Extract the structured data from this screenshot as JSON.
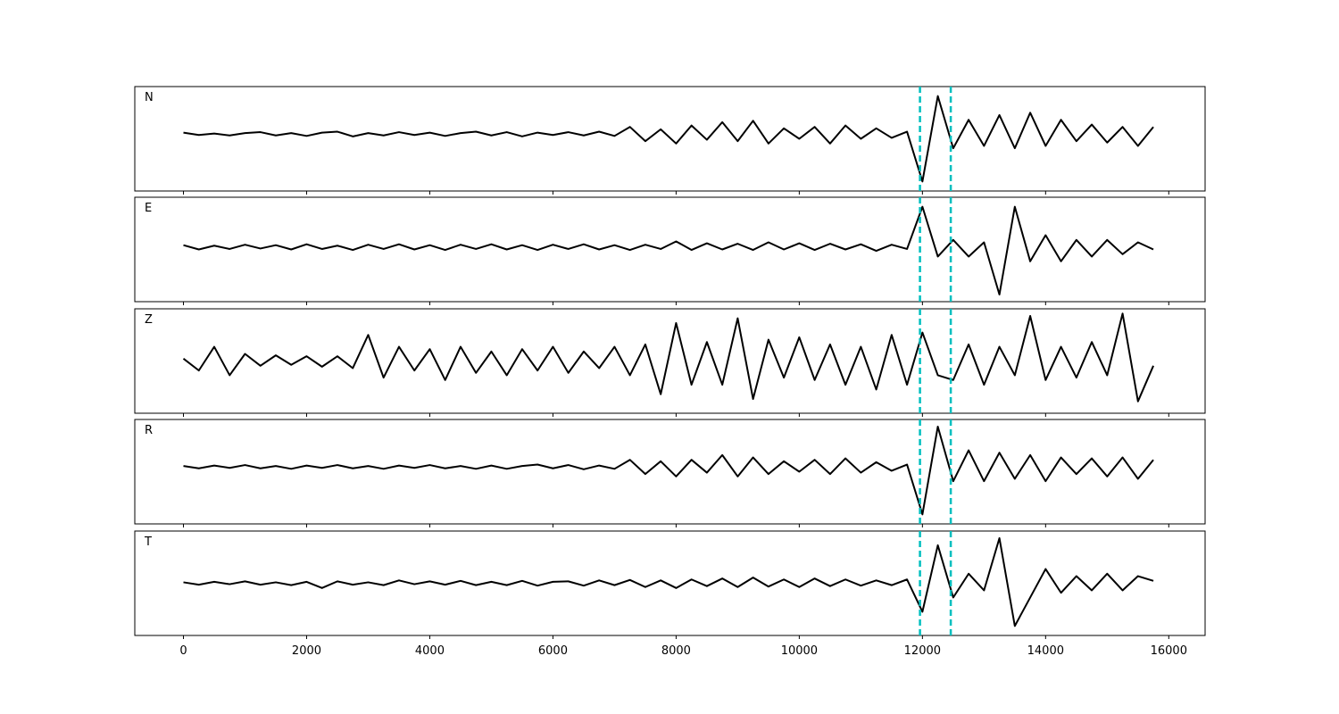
{
  "chart_data": {
    "type": "line",
    "line_color": "#000000",
    "x": [
      0,
      250,
      500,
      750,
      1000,
      1250,
      1500,
      1750,
      2000,
      2250,
      2500,
      2750,
      3000,
      3250,
      3500,
      3750,
      4000,
      4250,
      4500,
      4750,
      5000,
      5250,
      5500,
      5750,
      6000,
      6250,
      6500,
      6750,
      7000,
      7250,
      7500,
      7750,
      8000,
      8250,
      8500,
      8750,
      9000,
      9250,
      9500,
      9750,
      10000,
      10250,
      10500,
      10750,
      11000,
      11250,
      11500,
      11750,
      12000,
      12250,
      12500,
      12750,
      13000,
      13250,
      13500,
      13750,
      14000,
      14250,
      14500,
      14750,
      15000,
      15250,
      15500,
      15750
    ],
    "xlim": [
      -790,
      16590
    ],
    "xticks": [
      0,
      2000,
      4000,
      6000,
      8000,
      10000,
      12000,
      14000,
      16000
    ],
    "markers": {
      "values": [
        11960,
        12460
      ],
      "color": "#00bfbf"
    },
    "panels": [
      {
        "label": "N",
        "ylim": [
          -1.2,
          1.0
        ],
        "values": [
          0.03,
          -0.02,
          0.01,
          -0.03,
          0.02,
          0.04,
          -0.03,
          0.02,
          -0.04,
          0.03,
          0.05,
          -0.05,
          0.02,
          -0.03,
          0.04,
          -0.02,
          0.03,
          -0.04,
          0.02,
          0.05,
          -0.03,
          0.04,
          -0.05,
          0.03,
          -0.02,
          0.04,
          -0.03,
          0.05,
          -0.04,
          0.15,
          -0.15,
          0.1,
          -0.2,
          0.18,
          -0.12,
          0.25,
          -0.15,
          0.28,
          -0.2,
          0.12,
          -0.1,
          0.15,
          -0.2,
          0.18,
          -0.1,
          0.12,
          -0.08,
          0.05,
          -1.0,
          0.8,
          -0.3,
          0.3,
          -0.25,
          0.4,
          -0.3,
          0.45,
          -0.25,
          0.3,
          -0.15,
          0.2,
          -0.18,
          0.15,
          -0.25,
          0.15
        ]
      },
      {
        "label": "E",
        "ylim": [
          -1.15,
          1.05
        ],
        "values": [
          0.04,
          -0.05,
          0.03,
          -0.04,
          0.05,
          -0.03,
          0.04,
          -0.05,
          0.06,
          -0.04,
          0.03,
          -0.06,
          0.05,
          -0.04,
          0.06,
          -0.05,
          0.04,
          -0.06,
          0.05,
          -0.04,
          0.06,
          -0.05,
          0.04,
          -0.06,
          0.05,
          -0.04,
          0.06,
          -0.05,
          0.04,
          -0.06,
          0.05,
          -0.04,
          0.12,
          -0.06,
          0.08,
          -0.05,
          0.07,
          -0.06,
          0.1,
          -0.05,
          0.08,
          -0.06,
          0.07,
          -0.05,
          0.06,
          -0.08,
          0.05,
          -0.04,
          0.85,
          -0.2,
          0.15,
          -0.2,
          0.1,
          -1.0,
          0.85,
          -0.3,
          0.25,
          -0.3,
          0.15,
          -0.2,
          0.15,
          -0.15,
          0.1,
          -0.05
        ]
      },
      {
        "label": "Z",
        "ylim": [
          -1.1,
          1.1
        ],
        "values": [
          0.05,
          -0.2,
          0.3,
          -0.3,
          0.15,
          -0.1,
          0.12,
          -0.08,
          0.1,
          -0.12,
          0.1,
          -0.15,
          0.55,
          -0.35,
          0.3,
          -0.2,
          0.25,
          -0.4,
          0.3,
          -0.25,
          0.2,
          -0.3,
          0.25,
          -0.2,
          0.3,
          -0.25,
          0.2,
          -0.15,
          0.3,
          -0.3,
          0.35,
          -0.7,
          0.8,
          -0.5,
          0.4,
          -0.5,
          0.9,
          -0.8,
          0.45,
          -0.35,
          0.5,
          -0.4,
          0.35,
          -0.5,
          0.3,
          -0.6,
          0.55,
          -0.5,
          0.6,
          -0.3,
          -0.4,
          0.35,
          -0.5,
          0.3,
          -0.3,
          0.95,
          -0.4,
          0.3,
          -0.35,
          0.4,
          -0.3,
          1.0,
          -0.85,
          -0.1
        ]
      },
      {
        "label": "R",
        "ylim": [
          -1.2,
          1.0
        ],
        "values": [
          0.02,
          -0.03,
          0.03,
          -0.02,
          0.04,
          -0.03,
          0.02,
          -0.04,
          0.03,
          -0.02,
          0.04,
          -0.03,
          0.02,
          -0.04,
          0.03,
          -0.02,
          0.04,
          -0.03,
          0.02,
          -0.04,
          0.03,
          -0.04,
          0.02,
          0.05,
          -0.03,
          0.04,
          -0.05,
          0.03,
          -0.04,
          0.15,
          -0.15,
          0.12,
          -0.2,
          0.15,
          -0.12,
          0.25,
          -0.2,
          0.2,
          -0.15,
          0.12,
          -0.1,
          0.15,
          -0.15,
          0.18,
          -0.12,
          0.1,
          -0.08,
          0.05,
          -1.0,
          0.85,
          -0.3,
          0.35,
          -0.3,
          0.3,
          -0.25,
          0.25,
          -0.3,
          0.2,
          -0.15,
          0.18,
          -0.2,
          0.2,
          -0.25,
          0.15
        ]
      },
      {
        "label": "T",
        "ylim": [
          -1.1,
          1.1
        ],
        "values": [
          0.02,
          -0.03,
          0.03,
          -0.02,
          0.04,
          -0.03,
          0.02,
          -0.04,
          0.03,
          -0.1,
          0.04,
          -0.03,
          0.02,
          -0.04,
          0.06,
          -0.02,
          0.04,
          -0.03,
          0.05,
          -0.04,
          0.03,
          -0.04,
          0.05,
          -0.05,
          0.03,
          0.04,
          -0.05,
          0.06,
          -0.04,
          0.07,
          -0.08,
          0.06,
          -0.1,
          0.08,
          -0.06,
          0.1,
          -0.08,
          0.12,
          -0.07,
          0.08,
          -0.08,
          0.1,
          -0.06,
          0.08,
          -0.05,
          0.06,
          -0.04,
          0.08,
          -0.6,
          0.8,
          -0.3,
          0.2,
          -0.15,
          0.95,
          -0.9,
          -0.3,
          0.3,
          -0.2,
          0.15,
          -0.15,
          0.2,
          -0.15,
          0.15,
          0.05
        ]
      }
    ]
  }
}
